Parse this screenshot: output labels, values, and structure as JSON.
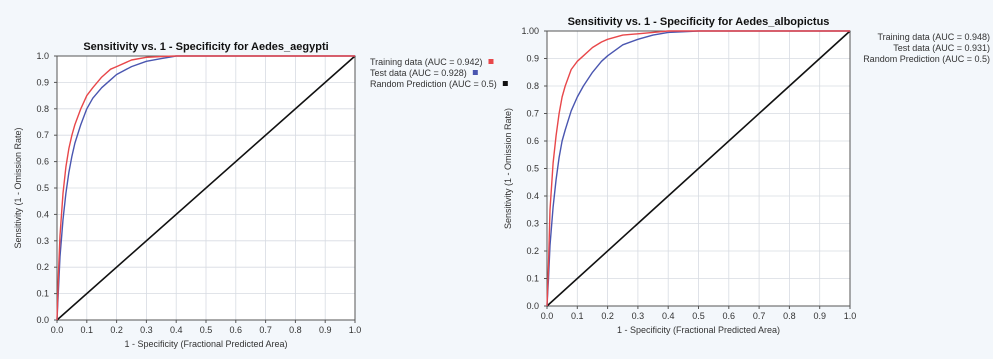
{
  "chart_data": [
    {
      "type": "line",
      "title": "Sensitivity vs. 1 - Specificity for Aedes_aegypti",
      "xlabel": "1 - Specificity  (Fractional Predicted Area)",
      "ylabel": "Sensitivity  (1 - Omission Rate)",
      "xlim": [
        0,
        1
      ],
      "ylim": [
        0,
        1
      ],
      "x_ticks": [
        "0.0",
        "0.1",
        "0.2",
        "0.3",
        "0.4",
        "0.5",
        "0.6",
        "0.7",
        "0.8",
        "0.9",
        "1.0"
      ],
      "y_ticks": [
        "0.0",
        "0.1",
        "0.2",
        "0.3",
        "0.4",
        "0.5",
        "0.6",
        "0.7",
        "0.8",
        "0.9",
        "1.0"
      ],
      "grid": true,
      "legend_position": "outside-right",
      "series": [
        {
          "name": "Training data (AUC = 0.942)",
          "color": "#e8474a",
          "x": [
            0,
            0.005,
            0.01,
            0.02,
            0.03,
            0.04,
            0.05,
            0.06,
            0.08,
            0.1,
            0.12,
            0.15,
            0.18,
            0.2,
            0.25,
            0.3,
            0.35,
            0.4,
            0.5,
            0.6,
            0.8,
            1.0
          ],
          "y": [
            0,
            0.18,
            0.32,
            0.48,
            0.58,
            0.65,
            0.7,
            0.74,
            0.8,
            0.85,
            0.88,
            0.92,
            0.95,
            0.96,
            0.985,
            0.995,
            0.998,
            1.0,
            1.0,
            1.0,
            1.0,
            1.0
          ]
        },
        {
          "name": "Test data (AUC = 0.928)",
          "color": "#4a56b0",
          "x": [
            0,
            0.005,
            0.01,
            0.02,
            0.03,
            0.04,
            0.05,
            0.06,
            0.08,
            0.1,
            0.12,
            0.15,
            0.18,
            0.2,
            0.25,
            0.3,
            0.35,
            0.4,
            0.5,
            0.6,
            0.8,
            1.0
          ],
          "y": [
            0,
            0.12,
            0.24,
            0.38,
            0.48,
            0.56,
            0.62,
            0.67,
            0.74,
            0.8,
            0.84,
            0.88,
            0.91,
            0.93,
            0.96,
            0.98,
            0.99,
            1.0,
            1.0,
            1.0,
            1.0,
            1.0
          ]
        },
        {
          "name": "Random Prediction (AUC = 0.5)",
          "color": "#111111",
          "x": [
            0,
            1
          ],
          "y": [
            0,
            1
          ]
        }
      ]
    },
    {
      "type": "line",
      "title": "Sensitivity vs. 1 - Specificity for Aedes_albopictus",
      "xlabel": "1 - Specificity  (Fractional Predicted Area)",
      "ylabel": "Sensitivity  (1 - Omission Rate)",
      "xlim": [
        0,
        1
      ],
      "ylim": [
        0,
        1
      ],
      "x_ticks": [
        "0.0",
        "0.1",
        "0.2",
        "0.3",
        "0.4",
        "0.5",
        "0.6",
        "0.7",
        "0.8",
        "0.9",
        "1.0"
      ],
      "y_ticks": [
        "0.0",
        "0.1",
        "0.2",
        "0.3",
        "0.4",
        "0.5",
        "0.6",
        "0.7",
        "0.8",
        "0.9",
        "1.00"
      ],
      "grid": true,
      "legend_position": "outside-right",
      "series": [
        {
          "name": "Training data (AUC = 0.948)",
          "color": "#e8474a",
          "x": [
            0,
            0.005,
            0.01,
            0.02,
            0.03,
            0.04,
            0.05,
            0.06,
            0.08,
            0.1,
            0.12,
            0.15,
            0.18,
            0.2,
            0.25,
            0.3,
            0.35,
            0.4,
            0.5,
            0.6,
            0.8,
            1.0
          ],
          "y": [
            0,
            0.15,
            0.35,
            0.52,
            0.62,
            0.7,
            0.76,
            0.8,
            0.86,
            0.89,
            0.91,
            0.94,
            0.96,
            0.97,
            0.985,
            0.99,
            0.995,
            1.0,
            1.0,
            1.0,
            1.0,
            1.0
          ]
        },
        {
          "name": "Test data (AUC = 0.931)",
          "color": "#4a56b0",
          "x": [
            0,
            0.005,
            0.01,
            0.02,
            0.03,
            0.04,
            0.05,
            0.06,
            0.08,
            0.1,
            0.12,
            0.15,
            0.18,
            0.2,
            0.25,
            0.3,
            0.35,
            0.4,
            0.5,
            0.6,
            0.8,
            1.0
          ],
          "y": [
            0,
            0.1,
            0.22,
            0.36,
            0.46,
            0.54,
            0.6,
            0.64,
            0.71,
            0.76,
            0.8,
            0.85,
            0.89,
            0.91,
            0.95,
            0.97,
            0.985,
            0.995,
            1.0,
            1.0,
            1.0,
            1.0
          ]
        },
        {
          "name": "Random Prediction (AUC = 0.5)",
          "color": "#111111",
          "x": [
            0,
            1
          ],
          "y": [
            0,
            1
          ]
        }
      ]
    }
  ]
}
